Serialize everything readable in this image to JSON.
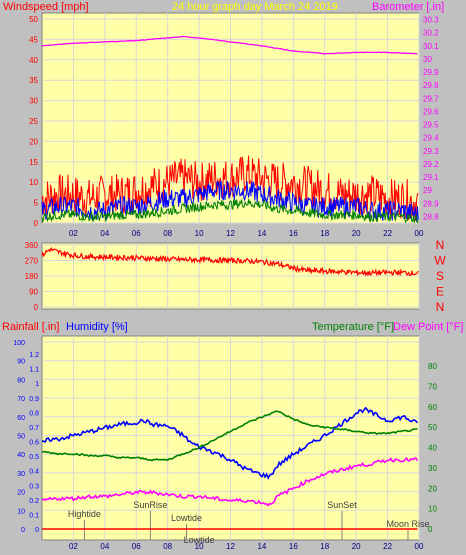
{
  "header": {
    "left_label": "Windspeed [mph]",
    "title": "24 hour graph day  March 24 2019",
    "right_label": "Barometer [.in]"
  },
  "colors": {
    "background": "#c0c0c0",
    "plot_bg": "#ffffa8",
    "grid": "#d8d8d8",
    "red": "#ff0000",
    "blue": "#0000ff",
    "green": "#008000",
    "magenta": "#ff00ff",
    "yellow": "#ffff00"
  },
  "chart_data": [
    {
      "type": "area",
      "name": "wind",
      "x_range": [
        0,
        24
      ],
      "x_ticks": [
        "02",
        "04",
        "06",
        "08",
        "10",
        "12",
        "14",
        "16",
        "18",
        "20",
        "22",
        "00"
      ],
      "y_left_range": [
        0,
        50
      ],
      "y_left_ticks": [
        "0",
        "5",
        "10",
        "15",
        "20",
        "25",
        "30",
        "35",
        "40",
        "45",
        "50"
      ],
      "y_right_range": [
        28.75,
        30.35
      ],
      "y_right_ticks": [
        "28.8",
        "28.9",
        "29",
        "29.1",
        "29.2",
        "29.3",
        "29.4",
        "29.5",
        "29.6",
        "29.7",
        "29.8",
        "29.9",
        "30",
        "30.1",
        "30.2",
        "30.3"
      ],
      "series": [
        {
          "name": "gust",
          "color": "#ff0000",
          "x": [
            0,
            1,
            2,
            3,
            4,
            5,
            6,
            7,
            8,
            9,
            10,
            11,
            12,
            13,
            14,
            15,
            16,
            17,
            18,
            19,
            20,
            21,
            22,
            23,
            24
          ],
          "y": [
            6,
            7,
            7,
            6,
            7,
            7,
            8,
            9,
            10,
            11,
            10,
            11,
            11,
            12,
            11,
            10,
            10,
            9,
            8,
            7,
            7,
            7,
            6,
            6,
            5
          ]
        },
        {
          "name": "average",
          "color": "#0000ff",
          "x": [
            0,
            1,
            2,
            3,
            4,
            5,
            6,
            7,
            8,
            9,
            10,
            11,
            12,
            13,
            14,
            15,
            16,
            17,
            18,
            19,
            20,
            21,
            22,
            23,
            24
          ],
          "y": [
            3,
            4,
            4,
            3,
            3,
            4,
            4,
            5,
            6,
            6,
            7,
            8,
            8,
            8,
            7,
            6,
            5,
            4,
            4,
            4,
            4,
            3,
            3,
            3,
            2
          ]
        },
        {
          "name": "low",
          "color": "#008000",
          "x": [
            0,
            1,
            2,
            3,
            4,
            5,
            6,
            7,
            8,
            9,
            10,
            11,
            12,
            13,
            14,
            15,
            16,
            17,
            18,
            19,
            20,
            21,
            22,
            23,
            24
          ],
          "y": [
            1.5,
            2,
            2,
            1.5,
            1.5,
            2,
            2,
            2.5,
            3,
            3.5,
            4,
            4.5,
            4.5,
            5,
            4.5,
            3.5,
            3,
            2.5,
            2,
            2,
            2,
            1.5,
            1.5,
            1.5,
            1
          ]
        },
        {
          "name": "barometer",
          "color": "#ff00ff",
          "axis": "right",
          "x": [
            0,
            2,
            4,
            6,
            8,
            9,
            10,
            12,
            14,
            16,
            17,
            18,
            20,
            22,
            24
          ],
          "y": [
            30.1,
            30.12,
            30.13,
            30.14,
            30.16,
            30.17,
            30.16,
            30.13,
            30.1,
            30.06,
            30.05,
            30.04,
            30.05,
            30.05,
            30.04
          ]
        }
      ]
    },
    {
      "type": "line",
      "name": "direction",
      "x_range": [
        0,
        24
      ],
      "y_range": [
        0,
        360
      ],
      "y_ticks": [
        "0",
        "90",
        "180",
        "270",
        "360"
      ],
      "right_labels": [
        "N",
        "W",
        "S",
        "E",
        "N"
      ],
      "series": [
        {
          "name": "wind direction",
          "color": "#ff0000",
          "x": [
            0,
            0.5,
            1,
            2,
            3,
            4,
            5,
            6,
            7,
            8,
            9,
            10,
            11,
            12,
            13,
            14,
            15,
            16,
            17,
            18,
            19,
            20,
            21,
            22,
            23,
            24
          ],
          "y": [
            300,
            335,
            320,
            300,
            292,
            290,
            288,
            285,
            282,
            278,
            275,
            275,
            272,
            270,
            268,
            262,
            250,
            225,
            210,
            208,
            205,
            200,
            198,
            200,
            200,
            195
          ]
        }
      ]
    },
    {
      "type": "line",
      "name": "atmosphere",
      "labels": {
        "rainfall": "Rainfall [.in]",
        "humidity": "Humidity [%]",
        "temperature": "Temperature [°F]",
        "dewpoint": "Dew Point [°F]"
      },
      "x_range": [
        0,
        24
      ],
      "x_ticks": [
        "02",
        "04",
        "06",
        "08",
        "10",
        "12",
        "14",
        "16",
        "18",
        "20",
        "22",
        "00"
      ],
      "y_humidity_ticks": [
        "0",
        "10",
        "20",
        "30",
        "40",
        "50",
        "60",
        "70",
        "80",
        "90",
        "100"
      ],
      "y_rain_ticks": [
        "0",
        "0.1",
        "0.2",
        "0.3",
        "0.4",
        "0.5",
        "0.6",
        "0.7",
        "0.8",
        "0.9",
        "1",
        "1.1",
        "1.2"
      ],
      "y_temp_range": [
        0,
        90
      ],
      "y_temp_ticks": [
        "0",
        "10",
        "20",
        "30",
        "40",
        "50",
        "60",
        "70",
        "80"
      ],
      "events": [
        {
          "label": "Hightide",
          "x": 2.7
        },
        {
          "label": "SunRise",
          "x": 6.9
        },
        {
          "label": "Lowtide",
          "x": 9.2
        },
        {
          "label": "Lowtide",
          "x": 10.0
        },
        {
          "label": "SunSet",
          "x": 19.1
        },
        {
          "label": "Moon Rise",
          "x": 23.3
        }
      ],
      "series": [
        {
          "name": "humidity",
          "color": "#0000ff",
          "axis": "humidity",
          "x": [
            0,
            0.5,
            1,
            2,
            3,
            4,
            5,
            6,
            6.5,
            7,
            8,
            9,
            9.5,
            10,
            11,
            12,
            13,
            14,
            14.5,
            15,
            16,
            17,
            18,
            19,
            20,
            20.5,
            21,
            22,
            23,
            24
          ],
          "y": [
            46,
            48,
            48,
            50,
            52,
            54,
            56,
            57,
            58,
            56,
            55,
            50,
            46,
            44,
            41,
            37,
            32,
            29,
            28,
            34,
            40,
            45,
            50,
            56,
            62,
            64,
            62,
            58,
            60,
            56
          ]
        },
        {
          "name": "temperature",
          "color": "#008000",
          "axis": "temp",
          "x": [
            0,
            1,
            2,
            3,
            4,
            5,
            6,
            7,
            8,
            9,
            10,
            11,
            12,
            13,
            14,
            15,
            16,
            17,
            18,
            19,
            20,
            21,
            22,
            23,
            24
          ],
          "y": [
            38,
            37,
            37,
            36,
            36,
            35,
            35,
            34,
            34,
            37,
            40,
            44,
            48,
            52,
            55,
            58,
            54,
            51,
            50,
            49,
            48,
            47,
            47,
            48,
            49
          ]
        },
        {
          "name": "dew point",
          "color": "#ff00ff",
          "axis": "temp",
          "x": [
            0,
            1,
            2,
            3,
            4,
            5,
            6,
            7,
            8,
            9,
            10,
            11,
            12,
            13,
            14,
            14.5,
            15,
            16,
            17,
            18,
            19,
            20,
            21,
            22,
            23,
            24
          ],
          "y": [
            14,
            15,
            15,
            16,
            16,
            17,
            18,
            18,
            17,
            16,
            16,
            15,
            14,
            14,
            13,
            12,
            16,
            20,
            24,
            27,
            29,
            31,
            32,
            34,
            34,
            34
          ]
        },
        {
          "name": "rainfall",
          "color": "#ff0000",
          "axis": "rain",
          "x": [
            0,
            24
          ],
          "y": [
            0,
            0
          ]
        }
      ]
    }
  ]
}
